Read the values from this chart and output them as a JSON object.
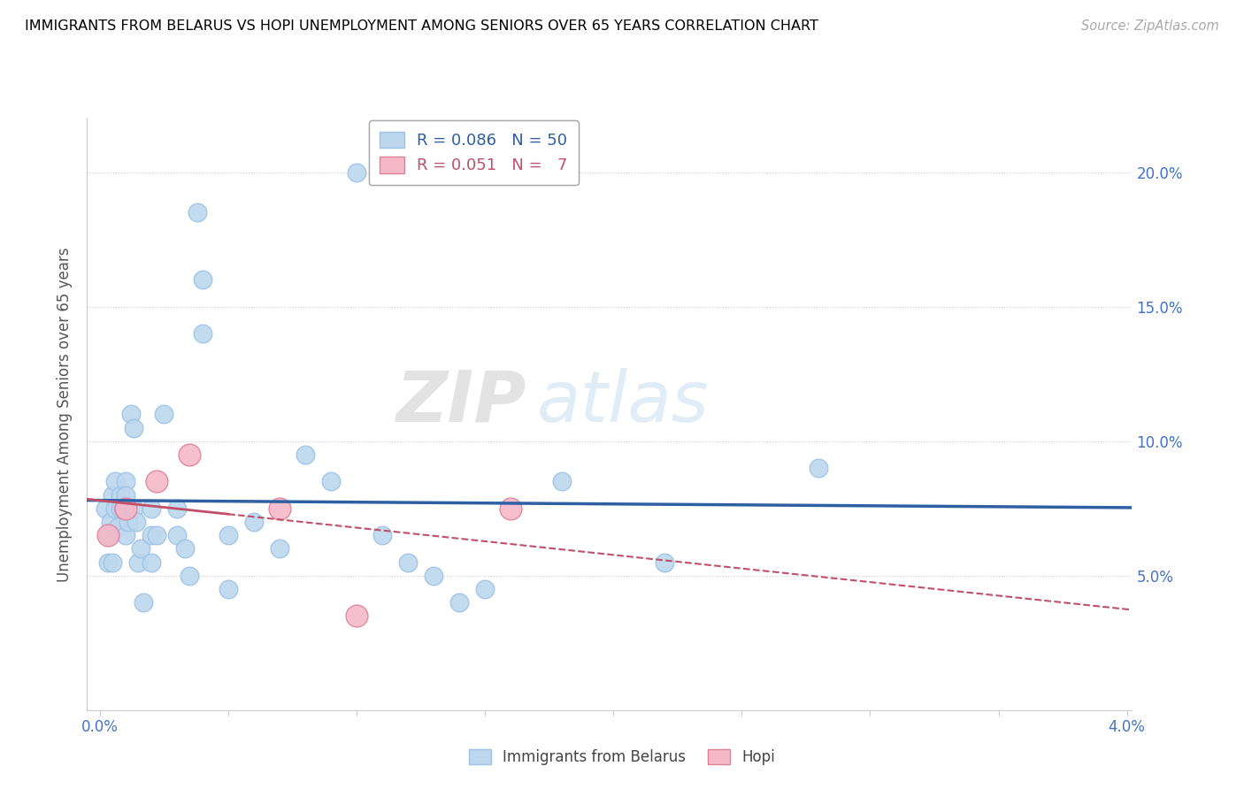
{
  "title": "IMMIGRANTS FROM BELARUS VS HOPI UNEMPLOYMENT AMONG SENIORS OVER 65 YEARS CORRELATION CHART",
  "source": "Source: ZipAtlas.com",
  "ylabel": "Unemployment Among Seniors over 65 years",
  "blue_R": "0.086",
  "blue_N": "50",
  "pink_R": "0.051",
  "pink_N": "7",
  "blue_color": "#bdd7ee",
  "blue_edge_color": "#9dc3e6",
  "blue_line_color": "#2e5fa3",
  "pink_color": "#f4b8c8",
  "pink_edge_color": "#e08098",
  "pink_line_color": "#c0506a",
  "watermark_zip": "ZIP",
  "watermark_atlas": "atlas",
  "xlim_min": 0.0,
  "xlim_max": 0.04,
  "ylim_min": 0.0,
  "ylim_max": 0.22,
  "x_tick_positions": [
    0.0,
    0.005,
    0.01,
    0.015,
    0.02,
    0.025,
    0.03,
    0.035,
    0.04
  ],
  "y_tick_positions": [
    0.05,
    0.1,
    0.15,
    0.2
  ],
  "y_tick_labels": [
    "5.0%",
    "10.0%",
    "15.0%",
    "20.0%"
  ],
  "blue_scatter_x": [
    0.0002,
    0.0003,
    0.0003,
    0.0004,
    0.0005,
    0.0005,
    0.0006,
    0.0006,
    0.0007,
    0.0008,
    0.0008,
    0.0009,
    0.001,
    0.001,
    0.001,
    0.0011,
    0.0012,
    0.0013,
    0.0013,
    0.0014,
    0.0015,
    0.0016,
    0.0017,
    0.002,
    0.002,
    0.002,
    0.0022,
    0.0025,
    0.003,
    0.003,
    0.0033,
    0.0035,
    0.0038,
    0.004,
    0.004,
    0.005,
    0.005,
    0.006,
    0.007,
    0.008,
    0.009,
    0.01,
    0.011,
    0.012,
    0.013,
    0.014,
    0.015,
    0.018,
    0.022,
    0.028
  ],
  "blue_scatter_y": [
    0.075,
    0.065,
    0.055,
    0.07,
    0.08,
    0.055,
    0.085,
    0.075,
    0.068,
    0.08,
    0.075,
    0.075,
    0.085,
    0.08,
    0.065,
    0.07,
    0.11,
    0.075,
    0.105,
    0.07,
    0.055,
    0.06,
    0.04,
    0.055,
    0.065,
    0.075,
    0.065,
    0.11,
    0.065,
    0.075,
    0.06,
    0.05,
    0.185,
    0.16,
    0.14,
    0.065,
    0.045,
    0.07,
    0.06,
    0.095,
    0.085,
    0.2,
    0.065,
    0.055,
    0.05,
    0.04,
    0.045,
    0.085,
    0.055,
    0.09
  ],
  "pink_scatter_x": [
    0.0003,
    0.001,
    0.0022,
    0.0035,
    0.007,
    0.01,
    0.016
  ],
  "pink_scatter_y": [
    0.065,
    0.075,
    0.085,
    0.095,
    0.075,
    0.035,
    0.075
  ]
}
